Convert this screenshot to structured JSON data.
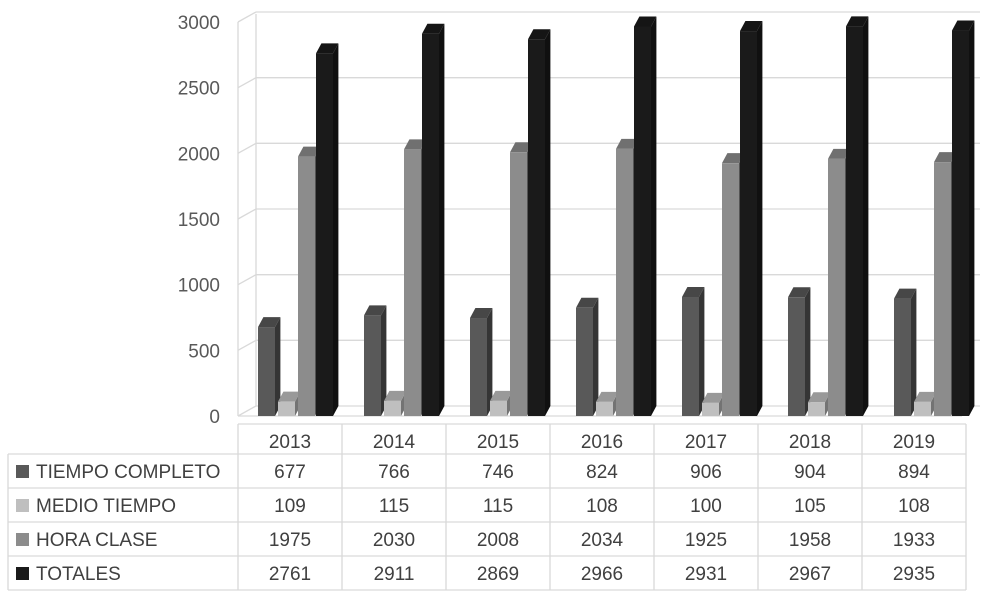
{
  "chart_data": {
    "type": "bar",
    "categories": [
      "2013",
      "2014",
      "2015",
      "2016",
      "2017",
      "2018",
      "2019"
    ],
    "series": [
      {
        "name": "TIEMPO COMPLETO",
        "color": "#595959",
        "values": [
          677,
          766,
          746,
          824,
          906,
          904,
          894
        ]
      },
      {
        "name": "MEDIO TIEMPO",
        "color": "#bfbfbf",
        "values": [
          109,
          115,
          115,
          108,
          100,
          105,
          108
        ]
      },
      {
        "name": "HORA CLASE",
        "color": "#8c8c8c",
        "values": [
          1975,
          2030,
          2008,
          2034,
          1925,
          1958,
          1933
        ]
      },
      {
        "name": "TOTALES",
        "color": "#1a1a1a",
        "values": [
          2761,
          2911,
          2869,
          2966,
          2931,
          2967,
          2935
        ]
      }
    ],
    "ylim": [
      0,
      3000
    ],
    "yticks": [
      "0",
      "500",
      "1000",
      "1500",
      "2000",
      "2500",
      "3000"
    ],
    "grid": true,
    "style": "3d-clustered-column",
    "legend": "data-table",
    "data_table": [
      {
        "label": "TIEMPO COMPLETO",
        "cells": [
          "677",
          "766",
          "746",
          "824",
          "906",
          "904",
          "894"
        ]
      },
      {
        "label": "MEDIO TIEMPO",
        "cells": [
          "109",
          "115",
          "115",
          "108",
          "100",
          "105",
          "108"
        ]
      },
      {
        "label": "HORA CLASE",
        "cells": [
          "1975",
          "2030",
          "2008",
          "2034",
          "1925",
          "1958",
          "1933"
        ]
      },
      {
        "label": "TOTALES",
        "cells": [
          "2761",
          "2911",
          "2869",
          "2966",
          "2931",
          "2967",
          "2935"
        ]
      }
    ]
  }
}
